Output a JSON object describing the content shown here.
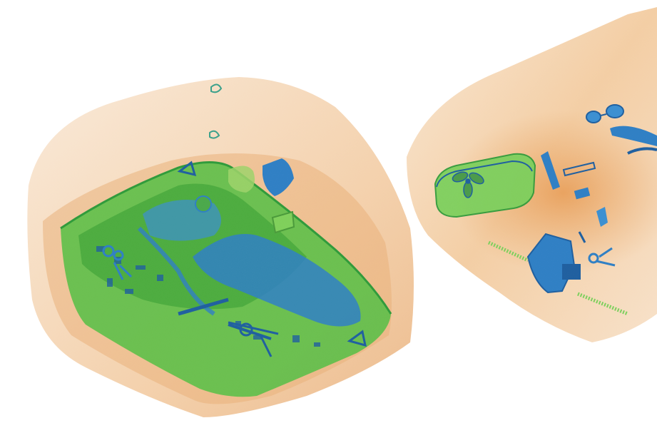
{
  "scene": {
    "background_color": "#ffffff",
    "palette": {
      "organic_orange": "#e8a868",
      "organic_light": "#f6dcc0",
      "inorganic_green": "#5cbf48",
      "metal_blue": "#2f7fc4",
      "metal_dark": "#1f5f9f"
    },
    "objects": [
      {
        "id": "bag-left",
        "kind": "backpack-x-ray",
        "contents": [
          "laptop",
          "power-adapter",
          "cables",
          "keys",
          "small-pouch"
        ]
      },
      {
        "id": "bag-right",
        "kind": "handbag-x-ray",
        "contents": [
          "lunch-box",
          "toothbrush",
          "lipstick",
          "keys",
          "phone-charger",
          "glasses"
        ]
      }
    ]
  }
}
